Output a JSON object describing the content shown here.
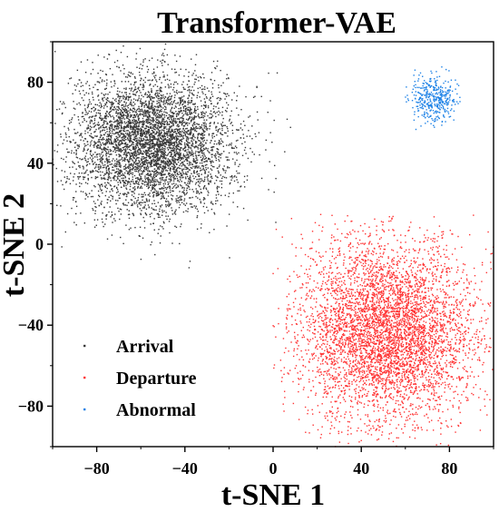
{
  "chart_data": {
    "type": "scatter",
    "title": "Transformer-VAE",
    "xlabel": "t-SNE 1",
    "ylabel": "t-SNE 2",
    "xlim": [
      -100,
      100
    ],
    "ylim": [
      -100,
      100
    ],
    "x_ticks": [
      -80,
      -40,
      0,
      40,
      80
    ],
    "y_ticks": [
      -80,
      -40,
      0,
      40,
      80
    ],
    "grid": false,
    "legend_position": "bottom-left",
    "series": [
      {
        "name": "Arrival",
        "color": "#3a3a3a",
        "cluster": {
          "center": [
            -55,
            50
          ],
          "spread": [
            18,
            17
          ],
          "range_x": [
            -100,
            10
          ],
          "range_y": [
            -20,
            100
          ],
          "approx_points": 5000
        }
      },
      {
        "name": "Departure",
        "color": "#ff3333",
        "cluster": {
          "center": [
            52,
            -43
          ],
          "spread": [
            20,
            22
          ],
          "range_x": [
            0,
            100
          ],
          "range_y": [
            -100,
            15
          ],
          "approx_points": 5000
        }
      },
      {
        "name": "Abnormal",
        "color": "#1e82e6",
        "cluster": {
          "center": [
            73,
            72
          ],
          "spread": [
            6,
            6
          ],
          "range_x": [
            60,
            85
          ],
          "range_y": [
            55,
            90
          ],
          "approx_points": 400
        }
      }
    ]
  }
}
